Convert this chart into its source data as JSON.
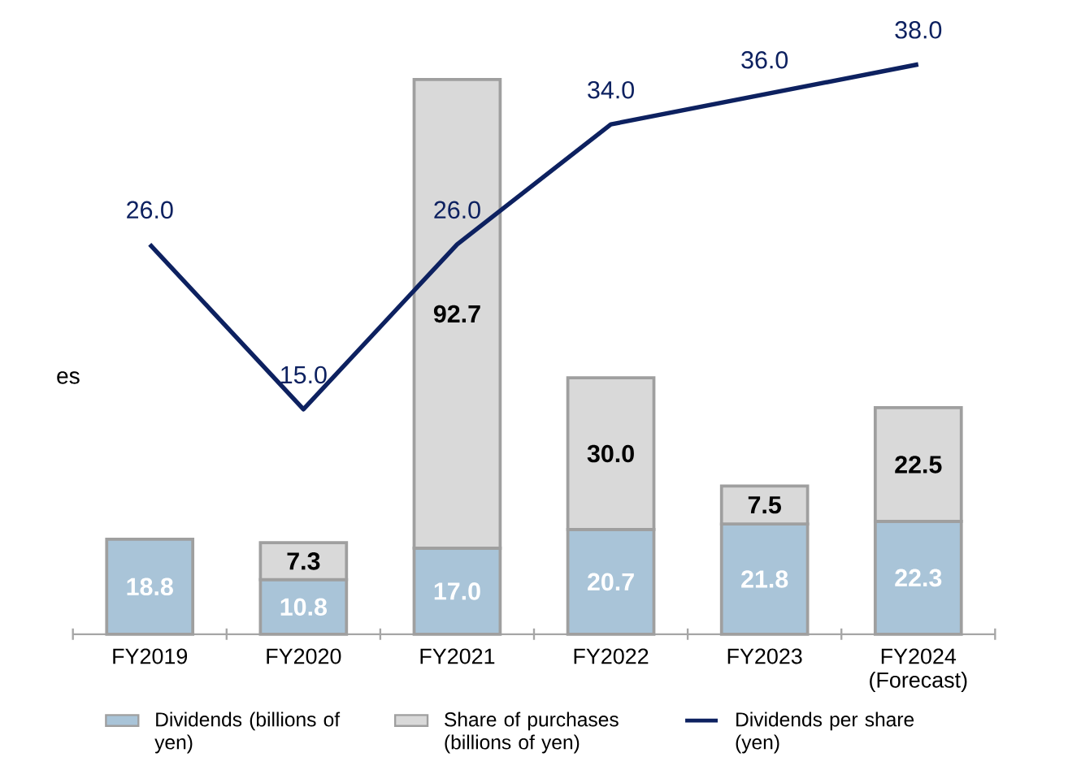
{
  "chart_data": {
    "type": "bar",
    "stacked": true,
    "categories": [
      "FY2019",
      "FY2020",
      "FY2021",
      "FY2022",
      "FY2023",
      "FY2024 (Forecast)"
    ],
    "series": [
      {
        "name": "Dividends (billions of yen)",
        "color": "#a9c4d8",
        "values": [
          18.8,
          10.8,
          17.0,
          20.7,
          21.8,
          22.3
        ],
        "value_labels": [
          "18.8",
          "10.8",
          "17.0",
          "20.7",
          "21.8",
          "22.3"
        ]
      },
      {
        "name": "Share of purchases (billions of yen)",
        "color": "#d9d9d9",
        "values": [
          null,
          7.3,
          92.7,
          30.0,
          7.5,
          22.5
        ],
        "value_labels": [
          null,
          "7.3",
          "92.7",
          "30.0",
          "7.5",
          "22.5"
        ]
      },
      {
        "name": "Dividends per share (yen)",
        "type": "line",
        "axis": "y2",
        "color": "#0d2160",
        "values": [
          26.0,
          15.0,
          26.0,
          34.0,
          36.0,
          38.0
        ],
        "value_labels": [
          "26.0",
          "15.0",
          "26.0",
          "34.0",
          "36.0",
          "38.0"
        ]
      }
    ],
    "legend": "bottom",
    "marker": "none",
    "line_style": "solid",
    "annotations": [
      "es"
    ]
  }
}
